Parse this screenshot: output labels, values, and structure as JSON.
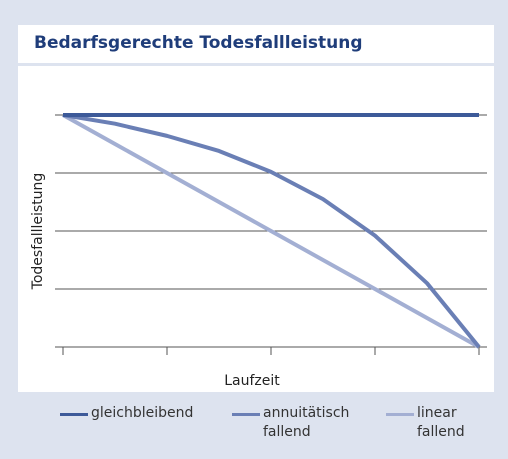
{
  "chart_data": {
    "type": "line",
    "title": "Bedarfsgerechte Todesfallleistung",
    "x_label": "Laufzeit",
    "y_label": "Todesfallleistung",
    "x": [
      0,
      0.5,
      1,
      1.5,
      2,
      2.5,
      3,
      3.5,
      4
    ],
    "xlim": [
      0,
      4
    ],
    "xticks": [
      0,
      1,
      2,
      3,
      4
    ],
    "ylim": [
      0,
      4
    ],
    "yticks": [
      0,
      1,
      2,
      3,
      4
    ],
    "grid": true,
    "legend": "bottom",
    "series": [
      {
        "name": "gleichbleibend",
        "color": "#3d5a99",
        "values": [
          4,
          4,
          4,
          4,
          4,
          4,
          4,
          4,
          4
        ]
      },
      {
        "name": "annuitätisch fallend",
        "color": "#6a7fb5",
        "values": [
          4,
          3.85,
          3.64,
          3.38,
          3.02,
          2.55,
          1.92,
          1.1,
          0
        ]
      },
      {
        "name": "linear fallend",
        "color": "#a3afd3",
        "values": [
          4,
          3.5,
          3,
          2.5,
          2,
          1.5,
          1,
          0.5,
          0
        ]
      }
    ]
  }
}
